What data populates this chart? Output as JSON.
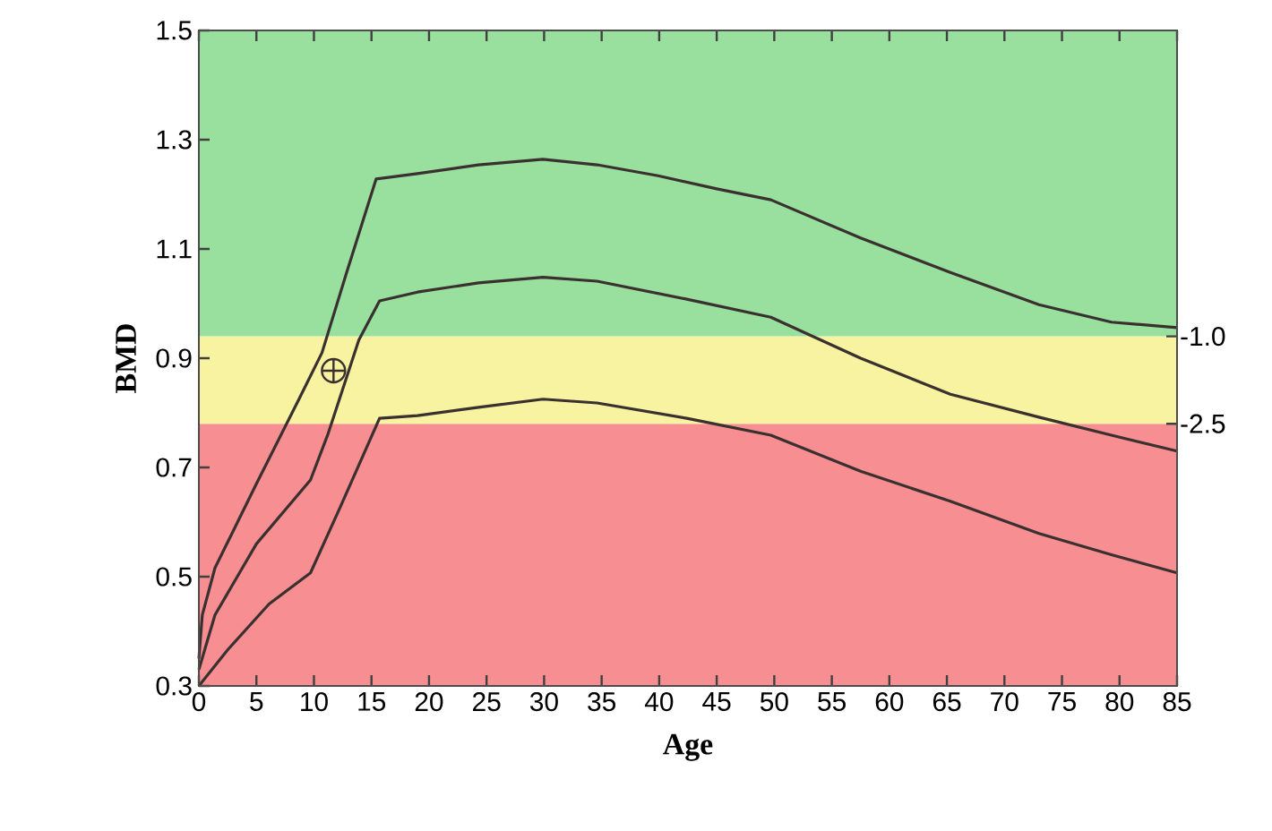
{
  "chart_data": {
    "type": "line",
    "xlabel": "Age",
    "ylabel": "BMD",
    "xlim": [
      0,
      85
    ],
    "ylim": [
      0.3,
      1.5
    ],
    "xticks": [
      0,
      5,
      10,
      15,
      20,
      25,
      30,
      35,
      40,
      45,
      50,
      55,
      60,
      65,
      70,
      75,
      80,
      85
    ],
    "yticks": [
      {
        "value": 0.3,
        "label": "0.3"
      },
      {
        "value": 0.5,
        "label": "0.5"
      },
      {
        "value": 0.7,
        "label": "0.7"
      },
      {
        "value": 0.9,
        "label": "0.9"
      },
      {
        "value": 1.1,
        "label": "1.1"
      },
      {
        "value": 1.3,
        "label": "1.3"
      },
      {
        "value": 1.5,
        "label": "1.5"
      }
    ],
    "grid": false,
    "line_style": "solid",
    "marker": "none",
    "bands": [
      {
        "axis": "y",
        "from": 0.3,
        "to": 0.78,
        "color": "#f78e92"
      },
      {
        "axis": "y",
        "from": 0.78,
        "to": 0.94,
        "color": "#f7f3a0"
      },
      {
        "axis": "y",
        "from": 0.94,
        "to": 1.5,
        "color": "#99e09f"
      }
    ],
    "y2lim": [
      -7.0,
      4.25
    ],
    "y2ticks": [
      {
        "value": -1.0,
        "label": "-1.0"
      },
      {
        "value": -2.5,
        "label": "-2.5"
      }
    ],
    "series": [
      {
        "color": "#3a3030",
        "x": [
          0,
          0.3,
          1.4,
          5,
          8.7,
          10.7,
          12.8,
          15.4,
          19,
          24.3,
          29.9,
          34.6,
          39.9,
          45,
          49.7,
          57.5,
          65.3,
          73,
          79.3,
          85
        ],
        "values": [
          0.35,
          0.43,
          0.516,
          0.67,
          0.825,
          0.91,
          1.054,
          1.228,
          1.238,
          1.254,
          1.264,
          1.254,
          1.234,
          1.21,
          1.19,
          1.12,
          1.057,
          0.998,
          0.966,
          0.956
        ]
      },
      {
        "color": "#3a3030",
        "x": [
          0,
          1.4,
          5,
          9.7,
          11.2,
          13.9,
          15.7,
          19,
          24.3,
          29.9,
          34.6,
          42.4,
          49.7,
          57.5,
          65.3,
          73,
          79.3,
          85
        ],
        "values": [
          0.33,
          0.43,
          0.56,
          0.677,
          0.76,
          0.933,
          1.005,
          1.021,
          1.038,
          1.048,
          1.041,
          1.008,
          0.975,
          0.9,
          0.834,
          0.792,
          0.759,
          0.73
        ]
      },
      {
        "color": "#3a3030",
        "x": [
          0,
          2.5,
          6.1,
          9.7,
          12.3,
          15.7,
          19,
          24.3,
          29.9,
          34.6,
          42.4,
          49.7,
          57.5,
          65.3,
          73,
          79.3,
          85
        ],
        "values": [
          0.3,
          0.366,
          0.45,
          0.507,
          0.628,
          0.79,
          0.795,
          0.81,
          0.825,
          0.818,
          0.79,
          0.759,
          0.693,
          0.638,
          0.579,
          0.54,
          0.507
        ]
      },
      {
        "type": "scatter",
        "marker": "cross",
        "color": "#3a3030",
        "x": [
          11.7
        ],
        "values": [
          0.877
        ]
      }
    ]
  }
}
